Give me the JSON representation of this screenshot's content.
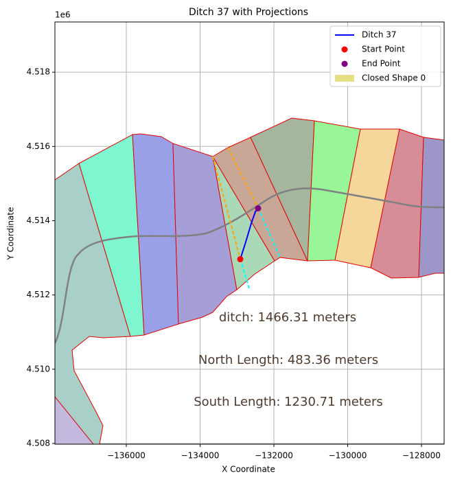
{
  "chart_data": {
    "type": "line",
    "title": "Ditch 37 with Projections",
    "x_label": "X Coordinate",
    "y_label": "Y Coordinate",
    "y_offset_label": "1e6",
    "xlim": [
      -137935,
      -127386
    ],
    "ylim": [
      4507981,
      4519352
    ],
    "xticks": [
      {
        "value": -136000,
        "label": "−136000"
      },
      {
        "value": -134000,
        "label": "−134000"
      },
      {
        "value": -132000,
        "label": "−132000"
      },
      {
        "value": -130000,
        "label": "−130000"
      },
      {
        "value": -128000,
        "label": "−128000"
      }
    ],
    "yticks": [
      {
        "value": 4508000,
        "label": "4.508"
      },
      {
        "value": 4510000,
        "label": "4.510"
      },
      {
        "value": 4512000,
        "label": "4.512"
      },
      {
        "value": 4514000,
        "label": "4.514"
      },
      {
        "value": 4516000,
        "label": "4.516"
      },
      {
        "value": 4518000,
        "label": "4.518"
      }
    ],
    "grid": true,
    "legend_position": "upper right",
    "series": [
      {
        "name": "Ditch 37",
        "color": "#0000ff",
        "x": [
          -132912,
          -132763,
          -132614,
          -132503,
          -132428
        ],
        "values": [
          4512963,
          4513426,
          4513926,
          4514241,
          4514333
        ]
      }
    ],
    "points": [
      {
        "name": "Start Point",
        "color": "#ff0000",
        "x": -132912,
        "y": 4512963
      },
      {
        "name": "End Point",
        "color": "#800080",
        "x": -132428,
        "y": 4514333
      }
    ],
    "shape_legend": {
      "name": "Closed Shape 0",
      "color": "#e5e085"
    },
    "annotations": [
      "ditch: 1466.31 meters",
      "North Length: 483.36 meters",
      "South Length: 1230.71 meters"
    ]
  }
}
